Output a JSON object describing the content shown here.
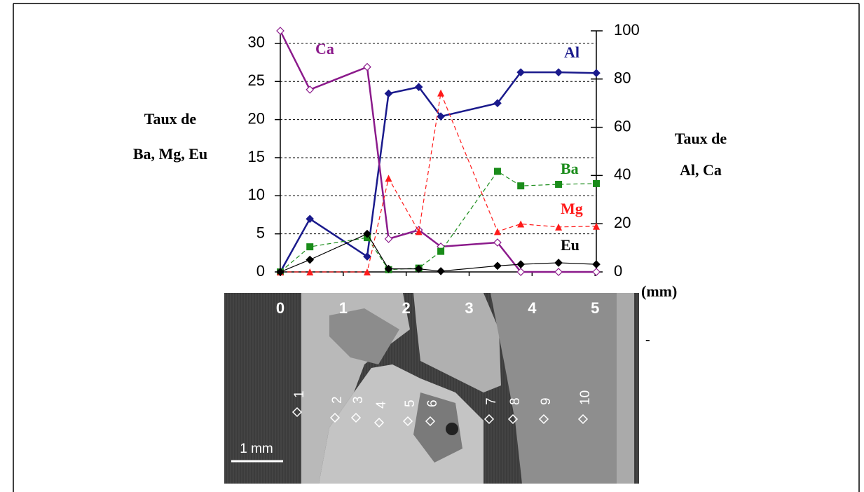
{
  "chart_data": {
    "type": "line",
    "x": [
      0,
      0.47,
      1.38,
      1.72,
      2.2,
      2.55,
      3.45,
      3.82,
      4.42,
      5.02
    ],
    "xlim": [
      0,
      5.02
    ],
    "xticks": [
      0,
      1,
      2,
      3,
      4,
      5
    ],
    "x_label": "(mm)",
    "ylim": [
      0,
      31.65
    ],
    "yticks": [
      0,
      5,
      10,
      15,
      20,
      25,
      30
    ],
    "y2lim": [
      0,
      100
    ],
    "y2ticks": [
      0,
      20,
      40,
      60,
      80,
      100
    ],
    "y_label": [
      "Taux de",
      "Ba, Mg, Eu"
    ],
    "y2_label": [
      "Taux de",
      "Al, Ca"
    ],
    "grid": true,
    "series": [
      {
        "name": "Al",
        "color": "#1a1a8c",
        "axis": "y2",
        "marker": "diamond",
        "dashed": false,
        "width": 2.5,
        "values": [
          0,
          22,
          6.4,
          74,
          76.7,
          64.5,
          70,
          82.8,
          82.8,
          82.5
        ]
      },
      {
        "name": "Ca",
        "color": "#8b1a8b",
        "axis": "y2",
        "marker": "open-diamond",
        "dashed": false,
        "width": 2.5,
        "values": [
          100,
          75.6,
          85,
          13.7,
          17.4,
          10.5,
          12.2,
          0,
          0,
          0
        ]
      },
      {
        "name": "Ba",
        "color": "#1a8c1a",
        "axis": "y",
        "marker": "square",
        "dashed": true,
        "width": 1.2,
        "values": [
          0,
          3.3,
          4.5,
          0.3,
          0.5,
          2.7,
          13.2,
          11.3,
          11.5,
          11.6
        ]
      },
      {
        "name": "Mg",
        "color": "#ff1a1a",
        "axis": "y",
        "marker": "triangle",
        "dashed": true,
        "width": 1.2,
        "values": [
          0,
          0,
          0,
          12.3,
          5.3,
          23.5,
          5.3,
          6.3,
          5.9,
          6
        ]
      },
      {
        "name": "Eu",
        "color": "#000000",
        "axis": "y",
        "marker": "diamond",
        "dashed": false,
        "width": 1.2,
        "values": [
          0,
          1.6,
          5,
          0.4,
          0.4,
          0.1,
          0.8,
          1,
          1.2,
          1
        ]
      }
    ]
  },
  "image": {
    "points": [
      "1",
      "2",
      "3",
      "4",
      "5",
      "6",
      "7",
      "8",
      "9",
      "10"
    ],
    "scale_bar": "1 mm"
  },
  "annotation": "-"
}
